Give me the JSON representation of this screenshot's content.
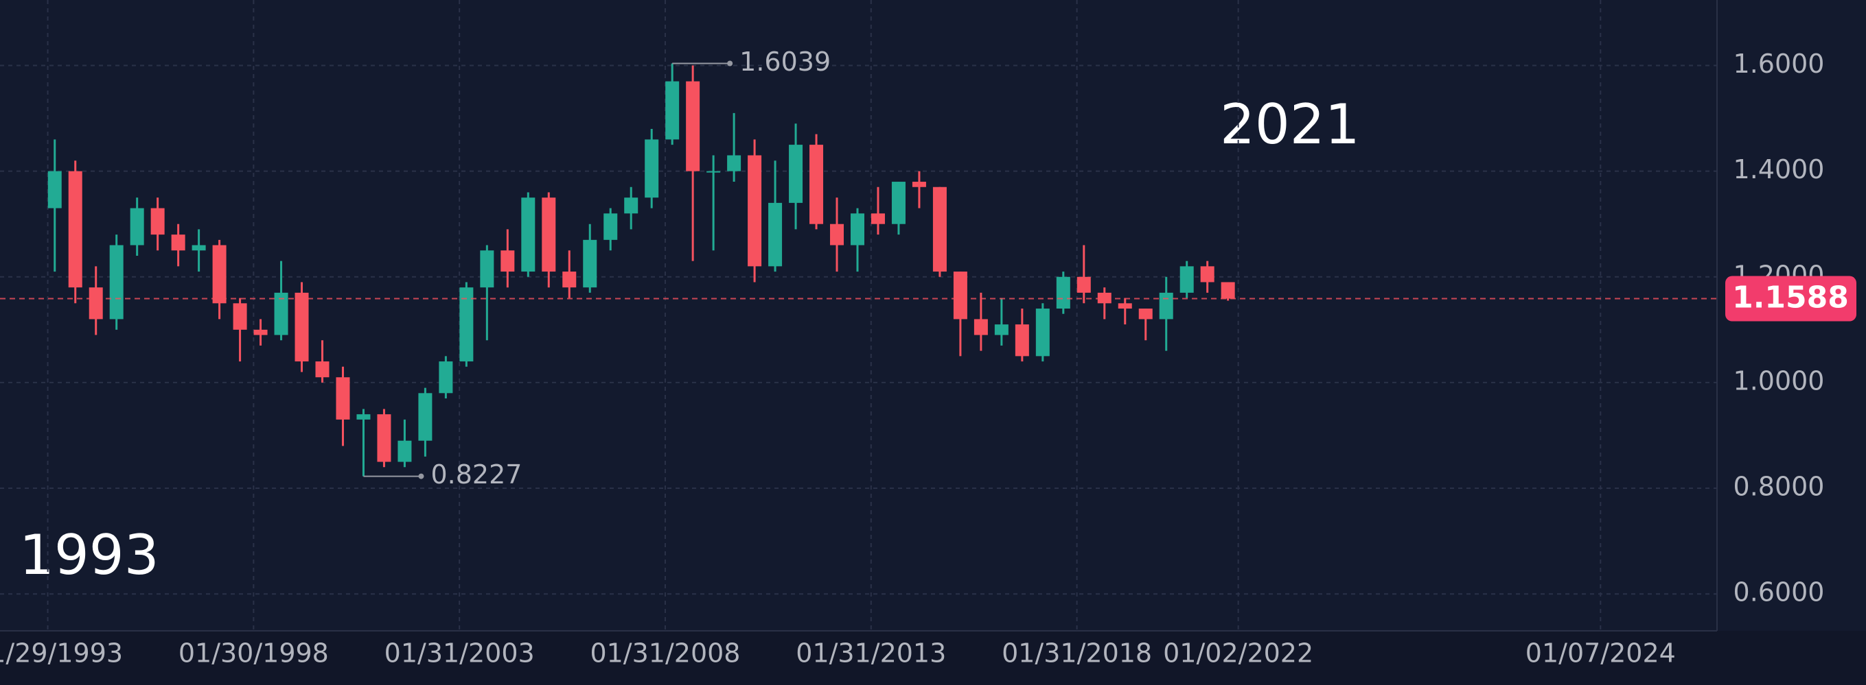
{
  "chart_data": {
    "type": "candlestick",
    "x": [
      1993.25,
      1993.75,
      1994.25,
      1994.75,
      1995.25,
      1995.75,
      1996.25,
      1996.75,
      1997.25,
      1997.75,
      1998.25,
      1998.75,
      1999.25,
      1999.75,
      2000.25,
      2000.75,
      2001.25,
      2001.75,
      2002.25,
      2002.75,
      2003.25,
      2003.75,
      2004.25,
      2004.75,
      2005.25,
      2005.75,
      2006.25,
      2006.75,
      2007.25,
      2007.75,
      2008.25,
      2008.75,
      2009.25,
      2009.75,
      2010.25,
      2010.75,
      2011.25,
      2011.75,
      2012.25,
      2012.75,
      2013.25,
      2013.75,
      2014.25,
      2014.75,
      2015.25,
      2015.75,
      2016.25,
      2016.75,
      2017.25,
      2017.75,
      2018.25,
      2018.75,
      2019.25,
      2019.75,
      2020.25,
      2020.75,
      2021.25,
      2021.75
    ],
    "open": [
      1.33,
      1.4,
      1.18,
      1.12,
      1.26,
      1.33,
      1.28,
      1.25,
      1.26,
      1.15,
      1.1,
      1.09,
      1.17,
      1.04,
      1.01,
      0.93,
      0.94,
      0.85,
      0.89,
      0.98,
      1.04,
      1.18,
      1.25,
      1.21,
      1.35,
      1.21,
      1.18,
      1.27,
      1.32,
      1.35,
      1.46,
      1.57,
      1.4,
      1.4,
      1.43,
      1.22,
      1.34,
      1.45,
      1.3,
      1.26,
      1.32,
      1.3,
      1.38,
      1.37,
      1.21,
      1.12,
      1.09,
      1.11,
      1.05,
      1.14,
      1.2,
      1.17,
      1.15,
      1.14,
      1.12,
      1.17,
      1.22,
      1.19
    ],
    "high": [
      1.46,
      1.42,
      1.22,
      1.28,
      1.35,
      1.35,
      1.3,
      1.29,
      1.27,
      1.16,
      1.12,
      1.23,
      1.19,
      1.08,
      1.03,
      0.95,
      0.95,
      0.93,
      0.99,
      1.05,
      1.19,
      1.26,
      1.29,
      1.36,
      1.36,
      1.25,
      1.3,
      1.33,
      1.37,
      1.48,
      1.6039,
      1.6,
      1.43,
      1.51,
      1.46,
      1.42,
      1.49,
      1.47,
      1.35,
      1.33,
      1.37,
      1.38,
      1.4,
      1.37,
      1.21,
      1.17,
      1.16,
      1.14,
      1.15,
      1.21,
      1.26,
      1.18,
      1.16,
      1.14,
      1.2,
      1.23,
      1.23,
      1.19
    ],
    "low": [
      1.21,
      1.15,
      1.09,
      1.1,
      1.24,
      1.25,
      1.22,
      1.21,
      1.12,
      1.04,
      1.07,
      1.08,
      1.02,
      1.0,
      0.88,
      0.8227,
      0.84,
      0.84,
      0.86,
      0.97,
      1.03,
      1.08,
      1.18,
      1.2,
      1.18,
      1.16,
      1.17,
      1.25,
      1.29,
      1.33,
      1.45,
      1.23,
      1.25,
      1.38,
      1.19,
      1.21,
      1.29,
      1.29,
      1.21,
      1.21,
      1.28,
      1.28,
      1.33,
      1.2,
      1.05,
      1.06,
      1.07,
      1.04,
      1.04,
      1.13,
      1.15,
      1.12,
      1.11,
      1.08,
      1.06,
      1.16,
      1.17,
      1.155
    ],
    "close": [
      1.4,
      1.18,
      1.12,
      1.26,
      1.33,
      1.28,
      1.25,
      1.26,
      1.15,
      1.1,
      1.09,
      1.17,
      1.04,
      1.01,
      0.93,
      0.94,
      0.85,
      0.89,
      0.98,
      1.04,
      1.18,
      1.25,
      1.21,
      1.35,
      1.21,
      1.18,
      1.27,
      1.32,
      1.35,
      1.46,
      1.57,
      1.4,
      1.4,
      1.43,
      1.22,
      1.34,
      1.45,
      1.3,
      1.26,
      1.32,
      1.3,
      1.38,
      1.37,
      1.21,
      1.12,
      1.09,
      1.11,
      1.05,
      1.14,
      1.2,
      1.17,
      1.15,
      1.14,
      1.12,
      1.17,
      1.22,
      1.19,
      1.1588
    ],
    "up_color": "#22ab94",
    "down_color": "#f7525f",
    "xlim": [
      1991.92,
      2033.63
    ],
    "ylim": [
      0.5302,
      1.7239
    ],
    "xticks": [
      {
        "value": 1993.08,
        "label": "01/29/1993"
      },
      {
        "value": 1998.08,
        "label": "01/30/1998"
      },
      {
        "value": 2003.08,
        "label": "01/31/2003"
      },
      {
        "value": 2008.08,
        "label": "01/31/2008"
      },
      {
        "value": 2013.08,
        "label": "01/31/2013"
      },
      {
        "value": 2018.08,
        "label": "01/31/2018"
      },
      {
        "value": 2022.0,
        "label": "01/02/2022"
      },
      {
        "value": 2030.8,
        "label": "01/07/2024"
      }
    ],
    "yticks": [
      {
        "value": 0.6,
        "label": "0.6000"
      },
      {
        "value": 0.8,
        "label": "0.8000"
      },
      {
        "value": 1.0,
        "label": "1.0000"
      },
      {
        "value": 1.2,
        "label": "1.2000"
      },
      {
        "value": 1.4,
        "label": "1.4000"
      },
      {
        "value": 1.6,
        "label": "1.6000"
      }
    ],
    "grid": true,
    "high_marker": 1.6039,
    "low_marker": 0.8227,
    "last_price": 1.1588,
    "annotations": [
      "1993",
      "2021"
    ]
  }
}
